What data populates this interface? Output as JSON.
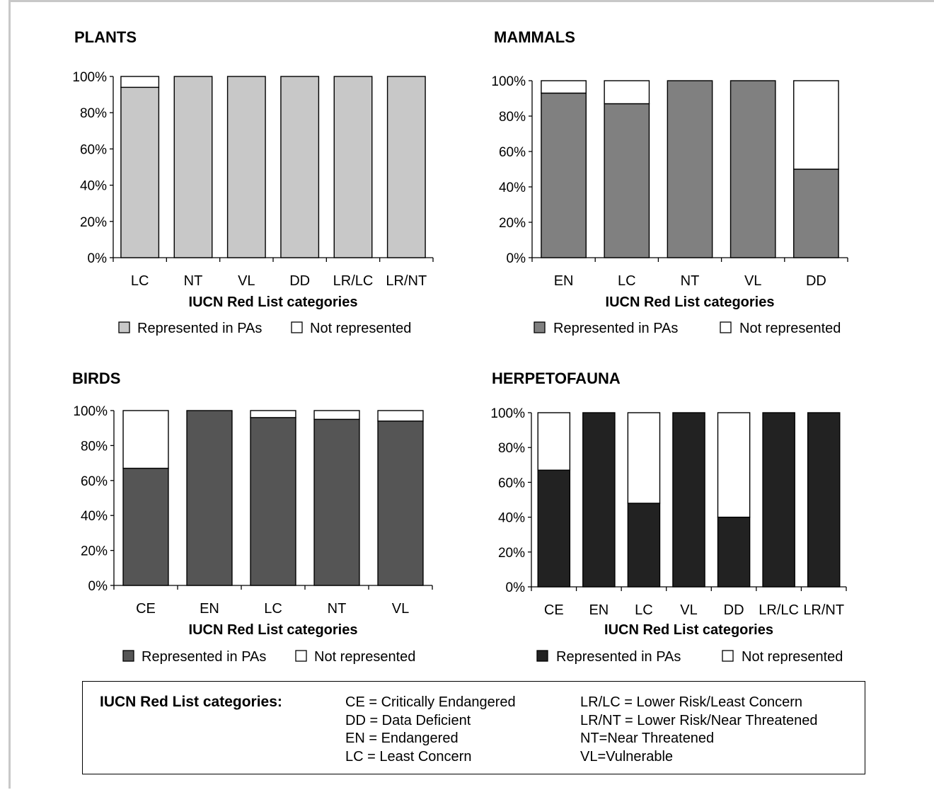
{
  "chart_data": [
    {
      "type": "bar",
      "stacked": true,
      "title": "PLANTS",
      "xlabel": "IUCN Red List categories",
      "ylabel": "",
      "ylim": [
        0,
        100
      ],
      "yticks": [
        "0%",
        "20%",
        "40%",
        "60%",
        "80%",
        "100%"
      ],
      "categories": [
        "LC",
        "NT",
        "VL",
        "DD",
        "LR/LC",
        "LR/NT"
      ],
      "series": [
        {
          "name": "Represented in PAs",
          "color": "#c8c8c8",
          "values": [
            94,
            100,
            100,
            100,
            100,
            100
          ]
        },
        {
          "name": "Not represented",
          "color": "#ffffff",
          "values": [
            6,
            0,
            0,
            0,
            0,
            0
          ]
        }
      ],
      "legend": "bottom"
    },
    {
      "type": "bar",
      "stacked": true,
      "title": "MAMMALS",
      "xlabel": "IUCN Red List categories",
      "ylabel": "",
      "ylim": [
        0,
        100
      ],
      "yticks": [
        "0%",
        "20%",
        "40%",
        "60%",
        "80%",
        "100%"
      ],
      "categories": [
        "EN",
        "LC",
        "NT",
        "VL",
        "DD"
      ],
      "series": [
        {
          "name": "Represented in PAs",
          "color": "#808080",
          "values": [
            93,
            87,
            100,
            100,
            50
          ]
        },
        {
          "name": "Not represented",
          "color": "#ffffff",
          "values": [
            7,
            13,
            0,
            0,
            50
          ]
        }
      ],
      "legend": "bottom"
    },
    {
      "type": "bar",
      "stacked": true,
      "title": "BIRDS",
      "xlabel": "IUCN Red List categories",
      "ylabel": "",
      "ylim": [
        0,
        100
      ],
      "yticks": [
        "0%",
        "20%",
        "40%",
        "60%",
        "80%",
        "100%"
      ],
      "categories": [
        "CE",
        "EN",
        "LC",
        "NT",
        "VL"
      ],
      "series": [
        {
          "name": "Represented in PAs",
          "color": "#555555",
          "values": [
            67,
            100,
            96,
            95,
            94
          ]
        },
        {
          "name": "Not represented",
          "color": "#ffffff",
          "values": [
            33,
            0,
            4,
            5,
            6
          ]
        }
      ],
      "legend": "bottom"
    },
    {
      "type": "bar",
      "stacked": true,
      "title": "HERPETOFAUNA",
      "xlabel": "IUCN Red List categories",
      "ylabel": "",
      "ylim": [
        0,
        100
      ],
      "yticks": [
        "0%",
        "20%",
        "40%",
        "60%",
        "80%",
        "100%"
      ],
      "categories": [
        "CE",
        "EN",
        "LC",
        "VL",
        "DD",
        "LR/LC",
        "LR/NT"
      ],
      "series": [
        {
          "name": "Represented in PAs",
          "color": "#222222",
          "values": [
            67,
            100,
            48,
            100,
            40,
            100,
            100
          ]
        },
        {
          "name": "Not represented",
          "color": "#ffffff",
          "values": [
            33,
            0,
            52,
            0,
            60,
            0,
            0
          ]
        }
      ],
      "legend": "bottom"
    }
  ],
  "category_legend": {
    "title": "IUCN Red List categories:",
    "col1": [
      "CE = Critically Endangered",
      "DD = Data Deficient",
      "EN = Endangered",
      "LC = Least Concern"
    ],
    "col2": [
      "LR/LC = Lower Risk/Least Concern",
      "LR/NT = Lower Risk/Near Threatened",
      "NT=Near Threatened",
      "VL=Vulnerable"
    ]
  }
}
